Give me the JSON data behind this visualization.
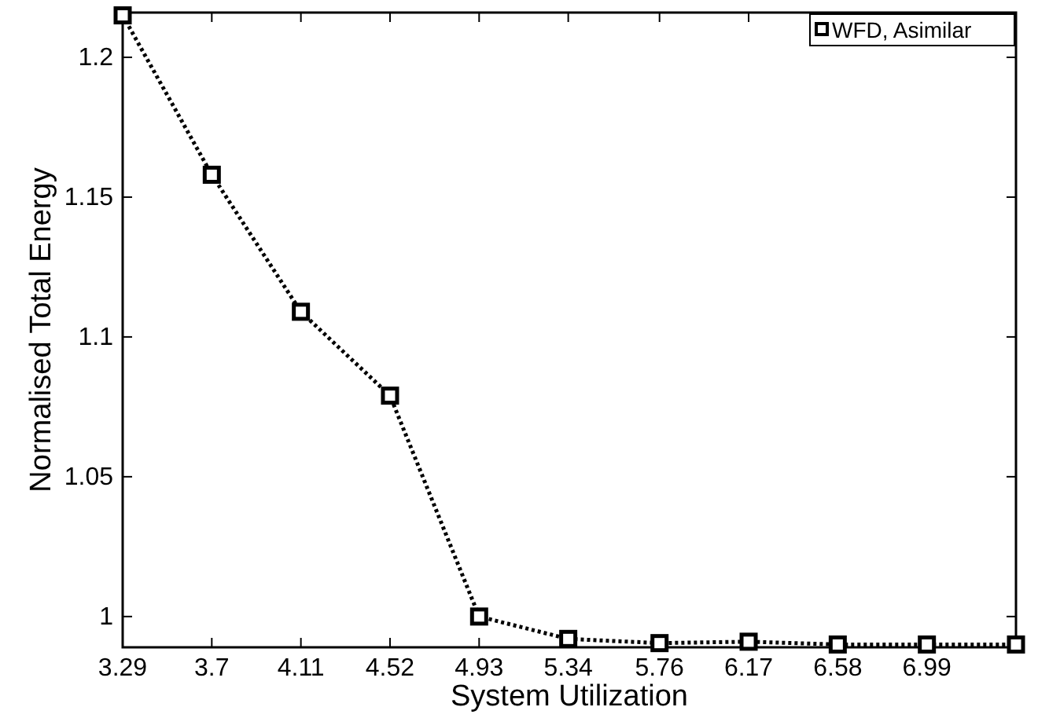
{
  "chart_data": {
    "type": "line",
    "xlabel": "System Utilization",
    "ylabel": "Normalised Total Energy",
    "x": [
      3.29,
      3.7,
      4.11,
      4.52,
      4.93,
      5.34,
      5.76,
      6.17,
      6.58,
      6.99,
      7.4
    ],
    "series": [
      {
        "name": "WFD, Asimilar",
        "color": "#000000",
        "values": [
          1.215,
          1.158,
          1.109,
          1.079,
          1.0,
          0.992,
          0.9905,
          0.991,
          0.99,
          0.99,
          0.99
        ]
      }
    ],
    "xlim": [
      3.29,
      7.4
    ],
    "xticks": [
      3.29,
      3.7,
      4.11,
      4.52,
      4.93,
      5.34,
      5.76,
      6.17,
      6.58,
      6.99
    ],
    "ylim": [
      0.989,
      1.216
    ],
    "yticks": [
      1,
      1.05,
      1.1,
      1.15,
      1.2
    ],
    "legend": "top right",
    "marker": "square",
    "line_style": "dotted",
    "grid": false
  }
}
